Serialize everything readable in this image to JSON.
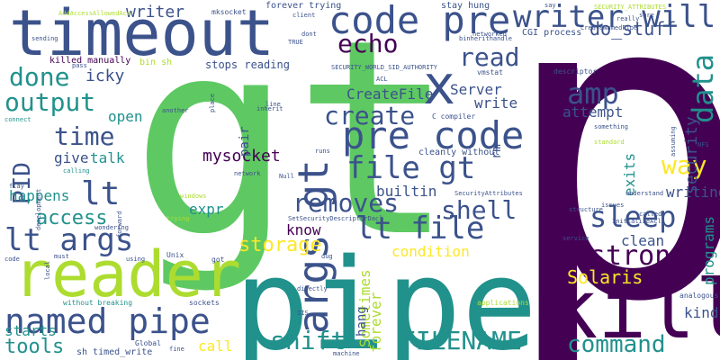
{
  "words": [
    {
      "text": "p",
      "color": "#440154"
    },
    {
      "text": "gt",
      "color": "#5ec962"
    },
    {
      "text": "pipe",
      "color": "#21918c"
    },
    {
      "text": "timeout",
      "color": "#3b528b"
    },
    {
      "text": "reader",
      "color": "#addc30"
    },
    {
      "text": "kill",
      "color": "#440154"
    },
    {
      "text": "x",
      "color": "#3b528b"
    },
    {
      "text": "code pre",
      "color": "#3b528b"
    },
    {
      "text": "pre code",
      "color": "#3b528b"
    },
    {
      "text": "writer will",
      "color": "#3b528b"
    },
    {
      "text": "named pipe",
      "color": "#3b528b"
    },
    {
      "text": "args gt",
      "color": "#3b528b"
    },
    {
      "text": "lt args",
      "color": "#3b528b"
    },
    {
      "text": "file gt",
      "color": "#3b528b"
    },
    {
      "text": "lt file",
      "color": "#3b528b"
    },
    {
      "text": "removes",
      "color": "#3b528b"
    },
    {
      "text": "shift",
      "color": "#21918c"
    },
    {
      "text": "FILENAME",
      "color": "#21918c"
    },
    {
      "text": "command",
      "color": "#21918c"
    },
    {
      "text": "sleep",
      "color": "#3b528b"
    },
    {
      "text": "strong",
      "color": "#440154"
    },
    {
      "text": "echo",
      "color": "#440154"
    },
    {
      "text": "output",
      "color": "#21918c"
    },
    {
      "text": "read",
      "color": "#3b528b"
    },
    {
      "text": "create",
      "color": "#3b528b"
    },
    {
      "text": "time",
      "color": "#3b528b"
    },
    {
      "text": "done",
      "color": "#21918c"
    },
    {
      "text": "amp",
      "color": "#3b528b"
    },
    {
      "text": "data",
      "color": "#21918c"
    },
    {
      "text": "way",
      "color": "#fde725"
    },
    {
      "text": "shell",
      "color": "#3b528b"
    },
    {
      "text": "lt",
      "color": "#3b528b"
    },
    {
      "text": "PID",
      "color": "#3b528b"
    },
    {
      "text": "access",
      "color": "#21918c"
    },
    {
      "text": "tools",
      "color": "#21918c"
    },
    {
      "text": "storage",
      "color": "#fde725"
    },
    {
      "text": "Solaris",
      "color": "#fde725"
    },
    {
      "text": "do_stuff",
      "color": "#3b528b"
    },
    {
      "text": "writer",
      "color": "#3b528b"
    },
    {
      "text": "icky",
      "color": "#3b528b"
    },
    {
      "text": "security",
      "color": "#3b528b"
    },
    {
      "text": "mysocket",
      "color": "#440154"
    },
    {
      "text": "CreateFile",
      "color": "#3b528b"
    },
    {
      "text": "Server",
      "color": "#3b528b"
    },
    {
      "text": "write",
      "color": "#3b528b"
    },
    {
      "text": "attempt",
      "color": "#3b528b"
    },
    {
      "text": "give",
      "color": "#3b528b"
    },
    {
      "text": "talk",
      "color": "#21918c"
    },
    {
      "text": "open",
      "color": "#21918c"
    },
    {
      "text": "happens",
      "color": "#21918c"
    },
    {
      "text": "builtin",
      "color": "#3b528b"
    },
    {
      "text": "expr",
      "color": "#21918c"
    },
    {
      "text": "know",
      "color": "#440154"
    },
    {
      "text": "condition",
      "color": "#fde725"
    },
    {
      "text": "Sometimes",
      "color": "#addc30"
    },
    {
      "text": "clean",
      "color": "#3b528b"
    },
    {
      "text": "writing",
      "color": "#3b528b"
    },
    {
      "text": "programs",
      "color": "#21918c"
    },
    {
      "text": "kind",
      "color": "#3b528b"
    },
    {
      "text": "exits",
      "color": "#21918c"
    },
    {
      "text": "starts",
      "color": "#21918c"
    },
    {
      "text": "call",
      "color": "#fde725"
    },
    {
      "text": "forever",
      "color": "#addc30"
    },
    {
      "text": "hang",
      "color": "#3b528b"
    },
    {
      "text": "pair",
      "color": "#3b528b"
    },
    {
      "text": "rm",
      "color": "#3b528b"
    },
    {
      "text": "stops reading",
      "color": "#3b528b"
    },
    {
      "text": "killed manually",
      "color": "#440154"
    },
    {
      "text": "bin sh",
      "color": "#addc30"
    },
    {
      "text": "mksocket",
      "color": "#3b528b"
    },
    {
      "text": "forever trying",
      "color": "#3b528b"
    },
    {
      "text": "stay hung",
      "color": "#3b528b"
    },
    {
      "text": "CGI process",
      "color": "#3b528b"
    },
    {
      "text": "binherithandle",
      "color": "#3b528b"
    },
    {
      "text": "vmstat",
      "color": "#3b528b"
    },
    {
      "text": "C compiler",
      "color": "#3b528b"
    },
    {
      "text": "cleanly without",
      "color": "#3b528b"
    },
    {
      "text": "without breaking",
      "color": "#21918c"
    },
    {
      "text": "sh timed_write",
      "color": "#3b528b"
    },
    {
      "text": "Global",
      "color": "#3b528b"
    },
    {
      "text": "sockets",
      "color": "#3b528b"
    },
    {
      "text": "analogous",
      "color": "#3b528b"
    },
    {
      "text": "descriptor",
      "color": "#3b528b"
    },
    {
      "text": "sending",
      "color": "#3b528b"
    },
    {
      "text": "client",
      "color": "#3b528b"
    },
    {
      "text": "another",
      "color": "#3b528b"
    },
    {
      "text": "network",
      "color": "#3b528b"
    },
    {
      "text": "wondering",
      "color": "#3b528b"
    },
    {
      "text": "directly",
      "color": "#3b528b"
    },
    {
      "text": "applications",
      "color": "#addc30"
    },
    {
      "text": "Unix",
      "color": "#3b528b"
    },
    {
      "text": "got",
      "color": "#3b528b"
    },
    {
      "text": "code",
      "color": "#3b528b"
    },
    {
      "text": "must",
      "color": "#3b528b"
    },
    {
      "text": "using",
      "color": "#3b528b"
    },
    {
      "text": "connect",
      "color": "#21918c"
    },
    {
      "text": "calling",
      "color": "#21918c"
    },
    {
      "text": "flay",
      "color": "#3b528b"
    },
    {
      "text": "Null",
      "color": "#3b528b"
    },
    {
      "text": "runs",
      "color": "#3b528b"
    },
    {
      "text": "line",
      "color": "#3b528b"
    },
    {
      "text": "inherit",
      "color": "#3b528b"
    },
    {
      "text": "place",
      "color": "#3b528b"
    },
    {
      "text": "windows",
      "color": "#addc30"
    },
    {
      "text": "forward",
      "color": "#3b528b"
    },
    {
      "text": "trying",
      "color": "#addc30"
    },
    {
      "text": "development",
      "color": "#3b528b"
    },
    {
      "text": "SecurityAttributes",
      "color": "#3b528b"
    },
    {
      "text": "SetSecurityDescriptorDacl",
      "color": "#3b528b"
    },
    {
      "text": "SECURITY_WORLD_SID_AUTHORITY",
      "color": "#3b528b"
    },
    {
      "text": "SECURITY_ATTRIBUTES",
      "color": "#addc30"
    },
    {
      "text": "CreateNamedPipe",
      "color": "#3b528b"
    },
    {
      "text": "AddAccessAllowedAce",
      "color": "#addc30"
    },
    {
      "text": "InitializeAcl",
      "color": "#3b528b"
    },
    {
      "text": "service",
      "color": "#3b528b"
    },
    {
      "text": "structure",
      "color": "#3b528b"
    },
    {
      "text": "issues",
      "color": "#3b528b"
    },
    {
      "text": "understand",
      "color": "#3b528b"
    },
    {
      "text": "called",
      "color": "#3b528b"
    },
    {
      "text": "NFS",
      "color": "#3b528b"
    },
    {
      "text": "standard",
      "color": "#addc30"
    },
    {
      "text": "something",
      "color": "#3b528b"
    },
    {
      "text": "assuming",
      "color": "#3b528b"
    },
    {
      "text": "networked",
      "color": "#3b528b"
    },
    {
      "text": "machine",
      "color": "#3b528b"
    },
    {
      "text": "fine",
      "color": "#3b528b"
    },
    {
      "text": "dug",
      "color": "#3b528b"
    },
    {
      "text": "IIS",
      "color": "#3b528b"
    },
    {
      "text": "ACL",
      "color": "#3b528b"
    },
    {
      "text": "pass",
      "color": "#3b528b"
    },
    {
      "text": "dont",
      "color": "#3b528b"
    },
    {
      "text": "TRUE",
      "color": "#3b528b"
    },
    {
      "text": "say",
      "color": "#3b528b"
    },
    {
      "text": "really",
      "color": "#3b528b"
    },
    {
      "text": "sure",
      "color": "#3b528b"
    },
    {
      "text": "local",
      "color": "#3b528b"
    }
  ]
}
